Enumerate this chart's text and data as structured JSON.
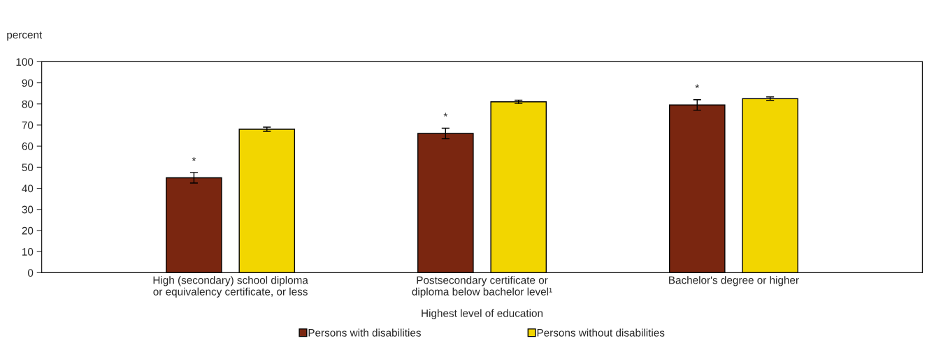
{
  "chart_data": {
    "type": "bar",
    "ylabel": "percent",
    "xlabel": "Highest level of education",
    "categories": [
      "High (secondary) school diploma\nor equivalency certificate, or less",
      "Postsecondary certificate or\ndiploma below bachelor level¹",
      "Bachelor's degree or higher"
    ],
    "series": [
      {
        "name": "Persons with disabilities",
        "color": "#7a2610",
        "values": [
          45,
          66,
          79.5
        ],
        "errors": [
          2.5,
          2.5,
          2.5
        ]
      },
      {
        "name": "Persons without disabilities",
        "color": "#f2d600",
        "values": [
          68,
          81,
          82.5
        ],
        "errors": [
          1,
          0.8,
          0.8
        ]
      }
    ],
    "annotations": [
      "*",
      "*",
      "*"
    ],
    "ylim": [
      0,
      100
    ],
    "yticks": [
      0,
      10,
      20,
      30,
      40,
      50,
      60,
      70,
      80,
      90,
      100
    ],
    "grid": false,
    "legend": "bottom"
  }
}
